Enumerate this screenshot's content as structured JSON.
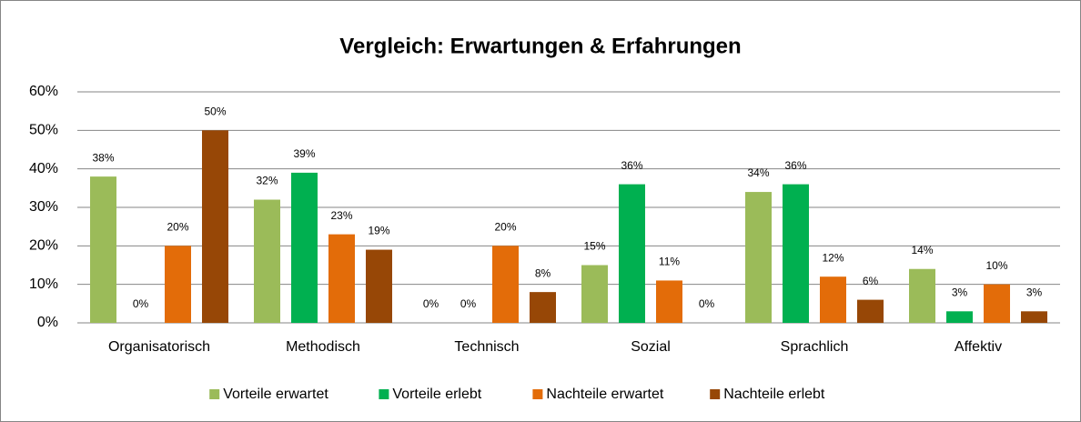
{
  "chart_data": {
    "type": "bar",
    "title": "Vergleich: Erwartungen & Erfahrungen",
    "categories": [
      "Organisatorisch",
      "Methodisch",
      "Technisch",
      "Sozial",
      "Sprachlich",
      "Affektiv"
    ],
    "series": [
      {
        "name": "Vorteile erwartet",
        "color": "#9bbb59",
        "values": [
          38,
          32,
          0,
          15,
          34,
          14
        ],
        "value_labels": [
          "38%",
          "32%",
          "0%",
          "15%",
          "34%",
          "14%"
        ]
      },
      {
        "name": "Vorteile erlebt",
        "color": "#00b050",
        "values": [
          0,
          39,
          0,
          36,
          36,
          3
        ],
        "value_labels": [
          "0%",
          "39%",
          "0%",
          "36%",
          "36%",
          "3%"
        ]
      },
      {
        "name": "Nachteile erwartet",
        "color": "#e36c09",
        "values": [
          20,
          23,
          20,
          11,
          12,
          10
        ],
        "value_labels": [
          "20%",
          "23%",
          "20%",
          "11%",
          "12%",
          "10%"
        ]
      },
      {
        "name": "Nachteile erlebt",
        "color": "#974706",
        "values": [
          50,
          19,
          8,
          0,
          6,
          3
        ],
        "value_labels": [
          "50%",
          "19%",
          "8%",
          "0%",
          "6%",
          "3%"
        ]
      }
    ],
    "ylim": [
      0,
      60
    ],
    "yticks": [
      {
        "value": 0,
        "label": "0%"
      },
      {
        "value": 10,
        "label": "10%"
      },
      {
        "value": 20,
        "label": "20%"
      },
      {
        "value": 30,
        "label": "30%"
      },
      {
        "value": 40,
        "label": "40%"
      },
      {
        "value": 50,
        "label": "50%"
      },
      {
        "value": 60,
        "label": "60%"
      }
    ],
    "grid": true,
    "legend": "bottom"
  }
}
